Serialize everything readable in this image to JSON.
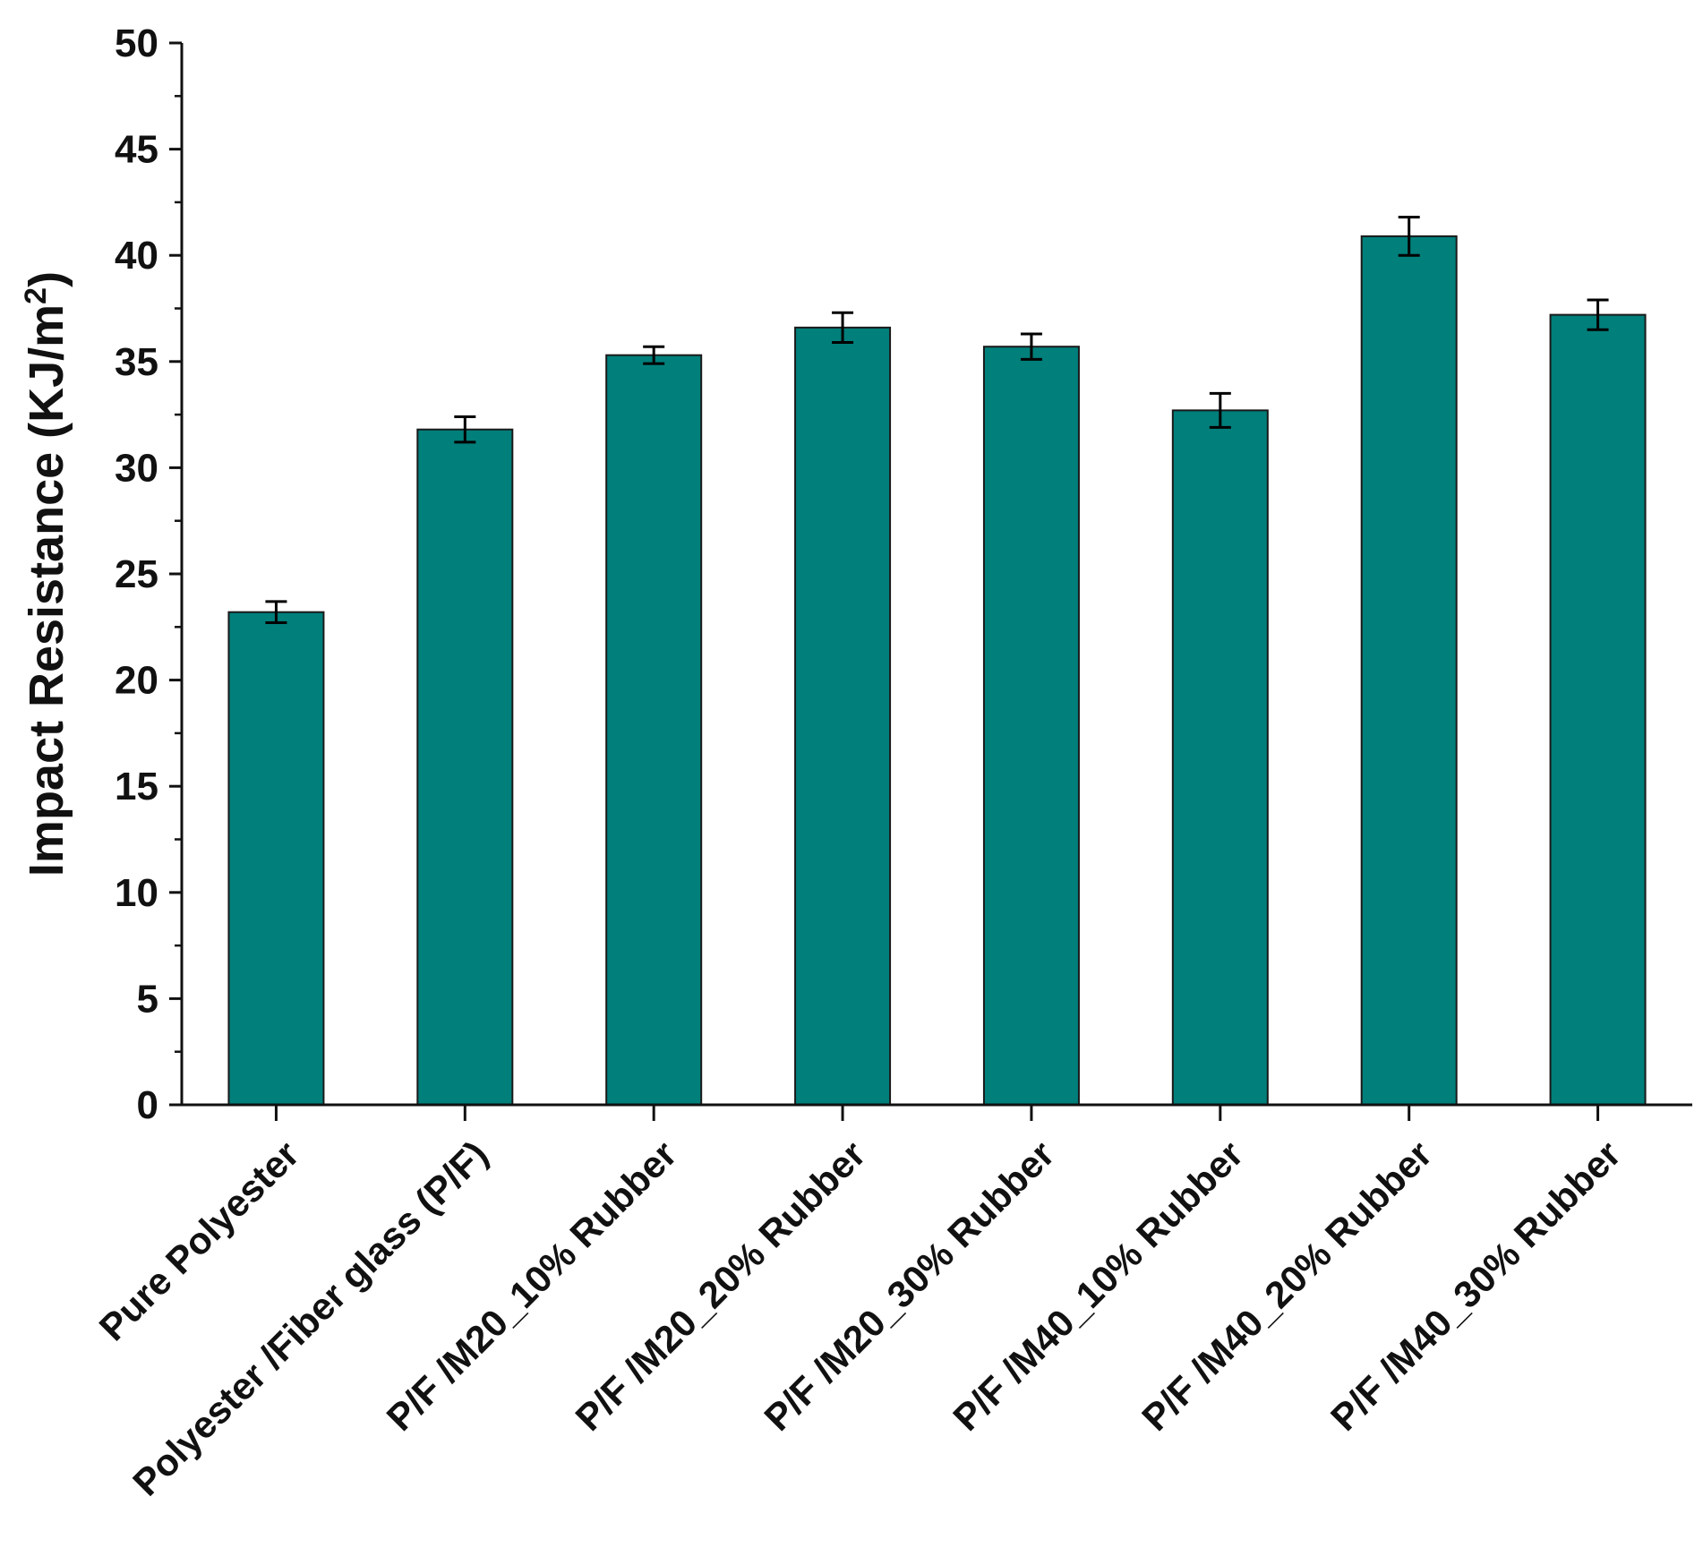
{
  "chart_data": {
    "type": "bar",
    "title": "",
    "xlabel": "",
    "ylabel": "Impact Resistance (KJ/m",
    "ylabel_superscript": "2",
    "ylabel_suffix": ")",
    "ylim": [
      0,
      50
    ],
    "yticks": [
      0,
      5,
      10,
      15,
      20,
      25,
      30,
      35,
      40,
      45,
      50
    ],
    "minor_ytick_step": 2.5,
    "grid": false,
    "legend": "none",
    "bar_color": "#007f7b",
    "error_bar_color": "#000000",
    "categories": [
      "Pure Polyester",
      "Polyester /Fiber glass (P/F)",
      "P/F /M20_10% Rubber",
      "P/F /M20_20% Rubber",
      "P/F /M20_30% Rubber",
      "P/F /M40_10% Rubber",
      "P/F /M40_20% Rubber",
      "P/F /M40_30% Rubber"
    ],
    "values": [
      23.2,
      31.8,
      35.3,
      36.6,
      35.7,
      32.7,
      40.9,
      37.2
    ],
    "errors": [
      0.5,
      0.6,
      0.4,
      0.7,
      0.6,
      0.8,
      0.9,
      0.7
    ]
  }
}
